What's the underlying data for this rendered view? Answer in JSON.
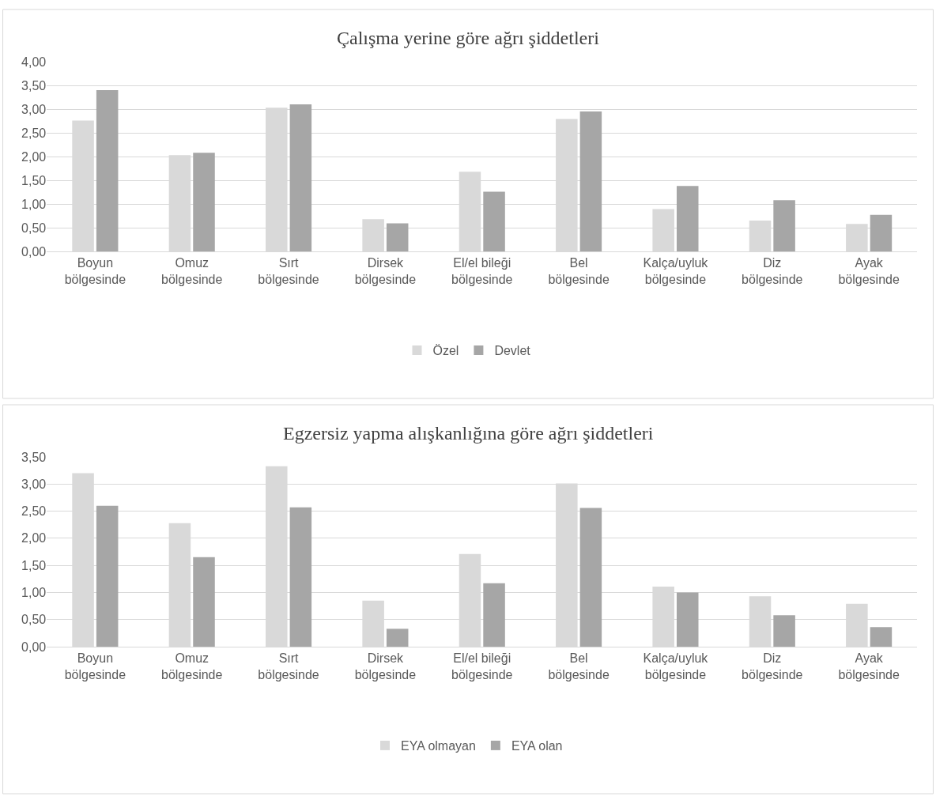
{
  "chart_data": [
    {
      "type": "bar",
      "title": "Çalışma yerine göre ağrı şiddetleri",
      "categories": [
        "Boyun bölgesinde",
        "Omuz bölgesinde",
        "Sırt bölgesinde",
        "Dirsek bölgesinde",
        "El/el bileği bölgesinde",
        "Bel bölgesinde",
        "Kalça/uyluk bölgesinde",
        "Diz bölgesinde",
        "Ayak bölgesinde"
      ],
      "series": [
        {
          "name": "Özel",
          "color": "#d9d9d9",
          "values": [
            2.76,
            2.03,
            3.03,
            0.68,
            1.68,
            2.79,
            0.89,
            0.65,
            0.58
          ]
        },
        {
          "name": "Devlet",
          "color": "#a6a6a6",
          "values": [
            3.4,
            2.08,
            3.1,
            0.59,
            1.26,
            2.95,
            1.38,
            1.08,
            0.77
          ]
        }
      ],
      "ylim": [
        0,
        4
      ],
      "yticks": [
        {
          "value": 0,
          "label": "0,00"
        },
        {
          "value": 0.5,
          "label": "0,50"
        },
        {
          "value": 1,
          "label": "1,00"
        },
        {
          "value": 1.5,
          "label": "1,50"
        },
        {
          "value": 2,
          "label": "2,00"
        },
        {
          "value": 2.5,
          "label": "2,50"
        },
        {
          "value": 3,
          "label": "3,00"
        },
        {
          "value": 3.5,
          "label": "3,50"
        },
        {
          "value": 4,
          "label": "4,00"
        }
      ],
      "grid": "y",
      "legend": "bottom"
    },
    {
      "type": "bar",
      "title": "Egzersiz yapma alışkanlığına göre ağrı şiddetleri",
      "categories": [
        "Boyun bölgesinde",
        "Omuz bölgesinde",
        "Sırt bölgesinde",
        "Dirsek bölgesinde",
        "El/el bileği bölgesinde",
        "Bel bölgesinde",
        "Kalça/uyluk bölgesinde",
        "Diz bölgesinde",
        "Ayak bölgesinde"
      ],
      "series": [
        {
          "name": "EYA olmayan",
          "color": "#d9d9d9",
          "values": [
            3.2,
            2.28,
            3.33,
            0.85,
            1.71,
            3.01,
            1.11,
            0.93,
            0.79
          ]
        },
        {
          "name": "EYA olan",
          "color": "#a6a6a6",
          "values": [
            2.6,
            1.65,
            2.57,
            0.33,
            1.17,
            2.56,
            1.0,
            0.58,
            0.36
          ]
        }
      ],
      "ylim": [
        0,
        3.5
      ],
      "yticks": [
        {
          "value": 0,
          "label": "0,00"
        },
        {
          "value": 0.5,
          "label": "0,50"
        },
        {
          "value": 1,
          "label": "1,00"
        },
        {
          "value": 1.5,
          "label": "1,50"
        },
        {
          "value": 2,
          "label": "2,00"
        },
        {
          "value": 2.5,
          "label": "2,50"
        },
        {
          "value": 3,
          "label": "3,00"
        },
        {
          "value": 3.5,
          "label": "3,50"
        }
      ],
      "grid": "y",
      "legend": "bottom"
    }
  ]
}
